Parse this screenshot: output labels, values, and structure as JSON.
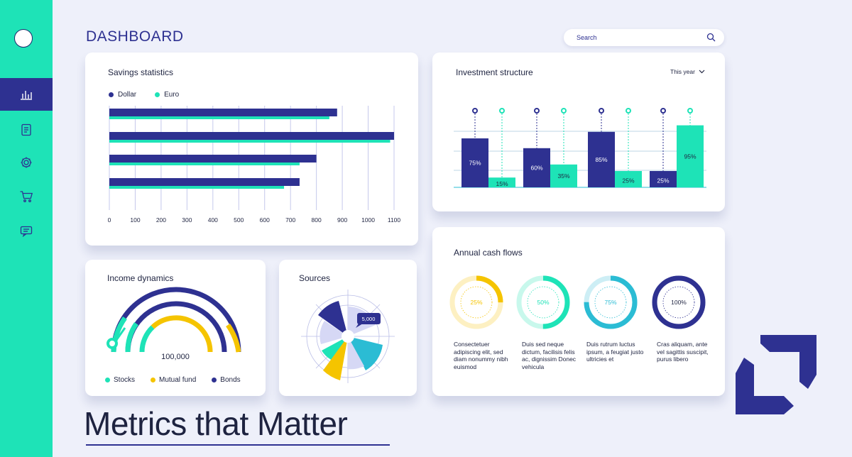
{
  "header": {
    "title": "DASHBOARD",
    "search_placeholder": "Search"
  },
  "sidebar": {
    "items": [
      {
        "icon": "bar-chart-icon",
        "active": true
      },
      {
        "icon": "document-icon",
        "active": false
      },
      {
        "icon": "gear-icon",
        "active": false
      },
      {
        "icon": "cart-icon",
        "active": false
      },
      {
        "icon": "message-icon",
        "active": false
      }
    ]
  },
  "savings": {
    "title": "Savings statistics",
    "legend": [
      "Dollar",
      "Euro"
    ],
    "colors": {
      "dollar": "#2e3191",
      "euro": "#1ee3b7"
    },
    "chart_data": {
      "type": "bar",
      "orientation": "horizontal",
      "categories": [
        "",
        "",
        "",
        ""
      ],
      "series": [
        {
          "name": "Dollar",
          "values": [
            880,
            1100,
            800,
            735
          ]
        },
        {
          "name": "Euro",
          "values": [
            850,
            1085,
            735,
            675
          ]
        }
      ],
      "xticks": [
        "0",
        "100",
        "200",
        "300",
        "400",
        "500",
        "600",
        "700",
        "800",
        "900",
        "1000",
        "1100"
      ],
      "xlim": [
        0,
        1100
      ],
      "grid": true
    }
  },
  "investment": {
    "title": "Investment structure",
    "period": "This year",
    "chart_data": {
      "type": "bar",
      "groups": [
        {
          "values": [
            75,
            15
          ],
          "labels": [
            "75%",
            "15%"
          ]
        },
        {
          "values": [
            60,
            35
          ],
          "labels": [
            "60%",
            "35%"
          ]
        },
        {
          "values": [
            85,
            25
          ],
          "labels": [
            "85%",
            "25%"
          ]
        },
        {
          "values": [
            25,
            95
          ],
          "labels": [
            "25%",
            "95%"
          ]
        }
      ]
    }
  },
  "income": {
    "title": "Income dynamics",
    "value": "100,000",
    "legend": [
      "Stocks",
      "Mutual fund",
      "Bonds"
    ],
    "colors": {
      "stocks": "#1ee3b7",
      "mutual": "#f5c400",
      "bonds": "#2e3191"
    }
  },
  "sources": {
    "title": "Sources",
    "callout": "5,000"
  },
  "cashflows": {
    "title": "Annual cash flows",
    "items": [
      {
        "value": 25,
        "label": "25%",
        "color": "#f5c400",
        "track": "#fdf0c2",
        "text": "Consectetuer adipiscing elit, sed diam nonummy nibh euismod"
      },
      {
        "value": 50,
        "label": "50%",
        "color": "#1ee3b7",
        "track": "#c8f8ec",
        "text": "Duis sed neque dictum, facilisis felis ac, dignissim Donec vehicula"
      },
      {
        "value": 75,
        "label": "75%",
        "color": "#2bbcd4",
        "track": "#cdeef5",
        "text": "Duis rutrum luctus ipsum, a feugiat justo ultricies et"
      },
      {
        "value": 100,
        "label": "100%",
        "color": "#2e3191",
        "track": "#d6d8f0",
        "text": "Cras aliquam, ante vel sagittis suscipit, purus libero"
      }
    ]
  },
  "tagline": "Metrics that Matter"
}
